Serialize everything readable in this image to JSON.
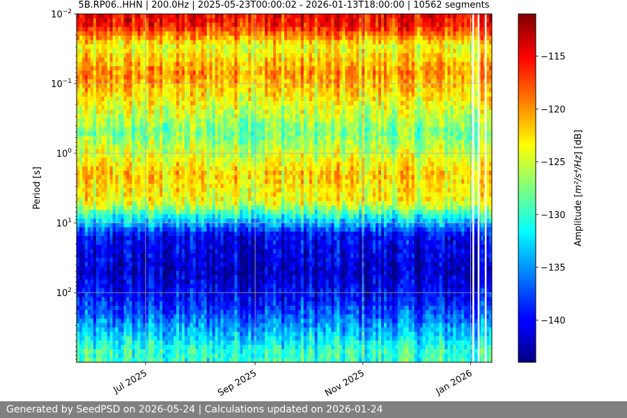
{
  "chart_data": {
    "type": "heatmap",
    "title": "5B.RP06..HHN | 200.0Hz | 2025-05-23T00:00:02 - 2026-01-13T18:00:00 | 10562 segments",
    "ylabel": "Period [s]",
    "y_scale": "log",
    "y_inverted": true,
    "y_ticks": [
      {
        "value": 0.01,
        "base": "10",
        "exp": "−2"
      },
      {
        "value": 0.1,
        "base": "10",
        "exp": "−1"
      },
      {
        "value": 1,
        "base": "10",
        "exp": "0"
      },
      {
        "value": 10,
        "base": "10",
        "exp": "1"
      },
      {
        "value": 100,
        "base": "10",
        "exp": "2"
      }
    ],
    "ylim": [
      0.01,
      1000
    ],
    "x_ticks": [
      {
        "date": "2025-07-01",
        "label": "Jul 2025"
      },
      {
        "date": "2025-09-01",
        "label": "Sep 2025"
      },
      {
        "date": "2025-11-01",
        "label": "Nov 2025"
      },
      {
        "date": "2026-01-01",
        "label": "Jan 2026"
      }
    ],
    "xlim": [
      "2025-05-23",
      "2026-01-13"
    ],
    "grid": true,
    "colormap": "jet",
    "colorbar": {
      "label_prefix": "Amplitude [",
      "label_unit": "m²/s⁴/Hz",
      "label_suffix": "] [dB]",
      "range": [
        -144,
        -111
      ],
      "ticks": [
        "−115",
        "−120",
        "−125",
        "−130",
        "−135",
        "−140"
      ],
      "tick_values": [
        -115,
        -120,
        -125,
        -130,
        -135,
        -140
      ]
    },
    "amplitude_profile_by_period": [
      {
        "period": 0.01,
        "db": -115
      },
      {
        "period": 0.015,
        "db": -116
      },
      {
        "period": 0.03,
        "db": -124
      },
      {
        "period": 0.07,
        "db": -120
      },
      {
        "period": 0.2,
        "db": -124
      },
      {
        "period": 0.5,
        "db": -128
      },
      {
        "period": 1.0,
        "db": -125
      },
      {
        "period": 2.0,
        "db": -122
      },
      {
        "period": 5.0,
        "db": -124
      },
      {
        "period": 8.0,
        "db": -131
      },
      {
        "period": 15,
        "db": -140
      },
      {
        "period": 50,
        "db": -142
      },
      {
        "period": 150,
        "db": -139
      },
      {
        "period": 300,
        "db": -135
      },
      {
        "period": 700,
        "db": -130
      }
    ]
  },
  "footer": {
    "text": "Generated by SeedPSD on 2026-05-24 | Calculations updated on 2026-01-24"
  }
}
